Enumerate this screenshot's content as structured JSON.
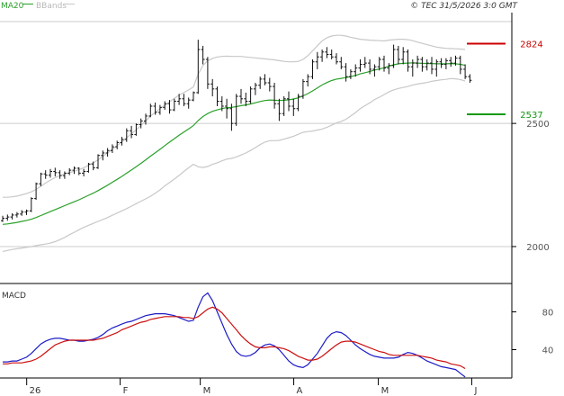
{
  "header": {
    "legend_ma": "MA20",
    "legend_bb": "BBands",
    "copyright": "© TEC 31/5/2026 3:0 GMT"
  },
  "colors": {
    "price": "#111111",
    "ma": "#2aa02a",
    "bbands": "#c8c8c8",
    "resistance": "#cc0000",
    "support": "#119911",
    "macd": "#1c1cc8",
    "signal": "#cc1010",
    "grid": "#cccccc",
    "frame": "#000000"
  },
  "chart_data": [
    {
      "type": "line",
      "panel": "price",
      "ylim": [
        1850,
        2950
      ],
      "yticks": [
        {
          "value": 2000,
          "label": "2000"
        },
        {
          "value": 2500,
          "label": "2500"
        }
      ],
      "levels": [
        {
          "name": "resistance",
          "value": 2824,
          "label": "2824",
          "color": "#cc0000"
        },
        {
          "name": "support",
          "value": 2537,
          "label": "2537",
          "color": "#119911"
        }
      ],
      "xlim": [
        0,
        115
      ],
      "x_ticks": [
        {
          "x": 6,
          "label": "26"
        },
        {
          "x": 27,
          "label": "F"
        },
        {
          "x": 45,
          "label": "M"
        },
        {
          "x": 66,
          "label": "A"
        },
        {
          "x": 85,
          "label": "M"
        },
        {
          "x": 106,
          "label": "J"
        }
      ],
      "ohlc": [
        [
          2105,
          2125,
          2100,
          2115
        ],
        [
          2115,
          2130,
          2105,
          2120
        ],
        [
          2120,
          2135,
          2110,
          2128
        ],
        [
          2128,
          2140,
          2118,
          2132
        ],
        [
          2132,
          2148,
          2125,
          2140
        ],
        [
          2140,
          2150,
          2128,
          2145
        ],
        [
          2145,
          2200,
          2140,
          2195
        ],
        [
          2195,
          2260,
          2190,
          2255
        ],
        [
          2255,
          2300,
          2245,
          2295
        ],
        [
          2295,
          2310,
          2275,
          2290
        ],
        [
          2290,
          2315,
          2280,
          2305
        ],
        [
          2305,
          2320,
          2285,
          2300
        ],
        [
          2300,
          2310,
          2275,
          2288
        ],
        [
          2288,
          2305,
          2275,
          2298
        ],
        [
          2298,
          2318,
          2290,
          2310
        ],
        [
          2310,
          2325,
          2295,
          2318
        ],
        [
          2318,
          2322,
          2290,
          2298
        ],
        [
          2298,
          2315,
          2285,
          2305
        ],
        [
          2305,
          2340,
          2300,
          2335
        ],
        [
          2335,
          2345,
          2310,
          2320
        ],
        [
          2320,
          2375,
          2315,
          2370
        ],
        [
          2370,
          2390,
          2350,
          2380
        ],
        [
          2380,
          2400,
          2365,
          2390
        ],
        [
          2390,
          2415,
          2380,
          2405
        ],
        [
          2405,
          2430,
          2395,
          2422
        ],
        [
          2422,
          2445,
          2410,
          2435
        ],
        [
          2435,
          2480,
          2425,
          2470
        ],
        [
          2470,
          2490,
          2440,
          2455
        ],
        [
          2455,
          2500,
          2450,
          2495
        ],
        [
          2495,
          2520,
          2480,
          2510
        ],
        [
          2510,
          2540,
          2495,
          2530
        ],
        [
          2530,
          2580,
          2525,
          2570
        ],
        [
          2570,
          2585,
          2535,
          2545
        ],
        [
          2545,
          2575,
          2535,
          2565
        ],
        [
          2565,
          2590,
          2555,
          2580
        ],
        [
          2580,
          2595,
          2540,
          2555
        ],
        [
          2555,
          2600,
          2550,
          2590
        ],
        [
          2590,
          2620,
          2575,
          2600
        ],
        [
          2600,
          2620,
          2570,
          2580
        ],
        [
          2580,
          2605,
          2560,
          2595
        ],
        [
          2595,
          2630,
          2590,
          2625
        ],
        [
          2625,
          2840,
          2620,
          2800
        ],
        [
          2800,
          2815,
          2740,
          2760
        ],
        [
          2760,
          2770,
          2640,
          2660
        ],
        [
          2660,
          2680,
          2610,
          2640
        ],
        [
          2640,
          2650,
          2570,
          2590
        ],
        [
          2590,
          2610,
          2550,
          2570
        ],
        [
          2570,
          2600,
          2520,
          2560
        ],
        [
          2560,
          2580,
          2470,
          2500
        ],
        [
          2500,
          2620,
          2490,
          2610
        ],
        [
          2610,
          2640,
          2580,
          2600
        ],
        [
          2600,
          2625,
          2570,
          2590
        ],
        [
          2590,
          2650,
          2580,
          2640
        ],
        [
          2640,
          2665,
          2615,
          2655
        ],
        [
          2655,
          2690,
          2640,
          2680
        ],
        [
          2680,
          2700,
          2655,
          2665
        ],
        [
          2665,
          2685,
          2630,
          2650
        ],
        [
          2650,
          2665,
          2560,
          2580
        ],
        [
          2580,
          2600,
          2510,
          2540
        ],
        [
          2540,
          2610,
          2530,
          2600
        ],
        [
          2600,
          2630,
          2550,
          2570
        ],
        [
          2570,
          2600,
          2530,
          2560
        ],
        [
          2560,
          2620,
          2550,
          2610
        ],
        [
          2610,
          2680,
          2600,
          2670
        ],
        [
          2670,
          2700,
          2650,
          2690
        ],
        [
          2690,
          2760,
          2680,
          2750
        ],
        [
          2750,
          2790,
          2720,
          2770
        ],
        [
          2770,
          2800,
          2750,
          2790
        ],
        [
          2790,
          2810,
          2765,
          2780
        ],
        [
          2780,
          2800,
          2760,
          2770
        ],
        [
          2770,
          2785,
          2740,
          2750
        ],
        [
          2750,
          2770,
          2720,
          2730
        ],
        [
          2730,
          2745,
          2670,
          2690
        ],
        [
          2690,
          2720,
          2680,
          2710
        ],
        [
          2710,
          2740,
          2690,
          2725
        ],
        [
          2725,
          2760,
          2710,
          2740
        ],
        [
          2740,
          2770,
          2725,
          2745
        ],
        [
          2745,
          2760,
          2700,
          2720
        ],
        [
          2720,
          2740,
          2690,
          2730
        ],
        [
          2730,
          2770,
          2715,
          2760
        ],
        [
          2760,
          2775,
          2710,
          2725
        ],
        [
          2725,
          2745,
          2700,
          2735
        ],
        [
          2735,
          2820,
          2725,
          2800
        ],
        [
          2800,
          2815,
          2740,
          2760
        ],
        [
          2760,
          2810,
          2740,
          2790
        ],
        [
          2790,
          2800,
          2710,
          2730
        ],
        [
          2730,
          2760,
          2690,
          2745
        ],
        [
          2745,
          2775,
          2725,
          2760
        ],
        [
          2760,
          2770,
          2710,
          2730
        ],
        [
          2730,
          2760,
          2715,
          2745
        ],
        [
          2745,
          2770,
          2700,
          2720
        ],
        [
          2720,
          2760,
          2690,
          2750
        ],
        [
          2750,
          2765,
          2725,
          2740
        ],
        [
          2740,
          2765,
          2720,
          2755
        ],
        [
          2755,
          2770,
          2730,
          2745
        ],
        [
          2745,
          2775,
          2735,
          2765
        ],
        [
          2765,
          2775,
          2700,
          2720
        ],
        [
          2720,
          2740,
          2680,
          2690
        ],
        [
          2690,
          2700,
          2665,
          2675
        ]
      ],
      "ma20": [
        2090,
        2092,
        2095,
        2098,
        2102,
        2106,
        2111,
        2118,
        2126,
        2134,
        2142,
        2150,
        2158,
        2166,
        2174,
        2182,
        2190,
        2199,
        2208,
        2217,
        2227,
        2238,
        2249,
        2261,
        2273,
        2285,
        2298,
        2311,
        2324,
        2338,
        2352,
        2367,
        2381,
        2395,
        2410,
        2424,
        2438,
        2452,
        2465,
        2478,
        2491,
        2512,
        2528,
        2540,
        2549,
        2555,
        2560,
        2564,
        2565,
        2568,
        2572,
        2575,
        2579,
        2584,
        2589,
        2593,
        2595,
        2594,
        2593,
        2594,
        2596,
        2599,
        2604,
        2612,
        2621,
        2632,
        2644,
        2656,
        2666,
        2674,
        2680,
        2683,
        2686,
        2690,
        2695,
        2701,
        2706,
        2711,
        2717,
        2721,
        2726,
        2733,
        2738,
        2742,
        2744,
        2745,
        2746,
        2745,
        2744,
        2743,
        2743,
        2742,
        2742,
        2742,
        2743,
        2742,
        2740,
        2736
      ],
      "bb_upper": [
        2200,
        2200,
        2202,
        2205,
        2210,
        2215,
        2222,
        2232,
        2245,
        2258,
        2270,
        2280,
        2288,
        2295,
        2300,
        2306,
        2312,
        2320,
        2330,
        2340,
        2352,
        2366,
        2380,
        2395,
        2410,
        2425,
        2442,
        2458,
        2474,
        2492,
        2510,
        2530,
        2545,
        2560,
        2574,
        2588,
        2602,
        2615,
        2625,
        2636,
        2648,
        2700,
        2735,
        2755,
        2764,
        2770,
        2772,
        2773,
        2772,
        2772,
        2772,
        2770,
        2768,
        2766,
        2764,
        2762,
        2760,
        2758,
        2755,
        2752,
        2750,
        2750,
        2752,
        2760,
        2775,
        2795,
        2815,
        2835,
        2848,
        2855,
        2858,
        2858,
        2855,
        2850,
        2846,
        2842,
        2840,
        2838,
        2837,
        2836,
        2835,
        2838,
        2840,
        2842,
        2842,
        2840,
        2836,
        2830,
        2825,
        2820,
        2815,
        2810,
        2807,
        2805,
        2804,
        2803,
        2802,
        2800
      ],
      "bb_lower": [
        1980,
        1984,
        1988,
        1991,
        1994,
        1997,
        2000,
        2004,
        2007,
        2010,
        2014,
        2020,
        2028,
        2037,
        2048,
        2058,
        2068,
        2078,
        2086,
        2094,
        2102,
        2110,
        2118,
        2127,
        2136,
        2145,
        2154,
        2164,
        2174,
        2184,
        2194,
        2204,
        2217,
        2230,
        2246,
        2260,
        2274,
        2289,
        2305,
        2320,
        2334,
        2324,
        2321,
        2325,
        2334,
        2340,
        2348,
        2355,
        2358,
        2364,
        2372,
        2380,
        2390,
        2402,
        2414,
        2424,
        2430,
        2430,
        2431,
        2436,
        2442,
        2448,
        2456,
        2464,
        2467,
        2469,
        2473,
        2477,
        2484,
        2493,
        2502,
        2508,
        2517,
        2530,
        2544,
        2560,
        2572,
        2584,
        2597,
        2606,
        2617,
        2628,
        2636,
        2642,
        2646,
        2650,
        2656,
        2660,
        2663,
        2666,
        2671,
        2674,
        2677,
        2679,
        2682,
        2681,
        2678,
        2672
      ]
    },
    {
      "type": "line",
      "panel": "macd",
      "title": "MACD",
      "ylim": [
        10,
        110
      ],
      "yticks": [
        {
          "value": 40,
          "label": "40"
        },
        {
          "value": 80,
          "label": "80"
        }
      ],
      "series": [
        {
          "key": "macd",
          "values": [
            27,
            27,
            28,
            28,
            30,
            32,
            36,
            41,
            46,
            49,
            51,
            52,
            52,
            51,
            50,
            50,
            49,
            49,
            50,
            51,
            53,
            56,
            60,
            63,
            65,
            67,
            69,
            70,
            72,
            74,
            76,
            77,
            78,
            78,
            78,
            77,
            76,
            74,
            72,
            70,
            71,
            85,
            96,
            100,
            92,
            80,
            68,
            56,
            46,
            38,
            34,
            33,
            34,
            37,
            42,
            45,
            46,
            44,
            40,
            34,
            28,
            24,
            22,
            21,
            24,
            30,
            36,
            44,
            52,
            57,
            59,
            58,
            55,
            50,
            45,
            41,
            38,
            35,
            33,
            32,
            31,
            31,
            31,
            32,
            35,
            37,
            36,
            34,
            31,
            28,
            26,
            24,
            22,
            21,
            20,
            19,
            15,
            11
          ]
        },
        {
          "key": "signal",
          "values": [
            25,
            25,
            26,
            26,
            26,
            27,
            28,
            30,
            33,
            37,
            41,
            45,
            47,
            49,
            50,
            50,
            50,
            50,
            50,
            50,
            51,
            52,
            54,
            56,
            58,
            61,
            63,
            65,
            67,
            69,
            70,
            72,
            73,
            74,
            75,
            75,
            75,
            75,
            74,
            74,
            73,
            75,
            79,
            83,
            85,
            83,
            79,
            73,
            67,
            61,
            55,
            50,
            46,
            43,
            42,
            42,
            43,
            43,
            42,
            41,
            39,
            36,
            33,
            31,
            29,
            29,
            30,
            33,
            37,
            41,
            45,
            48,
            49,
            49,
            48,
            46,
            44,
            42,
            40,
            38,
            37,
            35,
            34,
            34,
            34,
            34,
            34,
            34,
            33,
            32,
            31,
            29,
            28,
            27,
            25,
            24,
            23,
            20
          ]
        }
      ]
    }
  ]
}
